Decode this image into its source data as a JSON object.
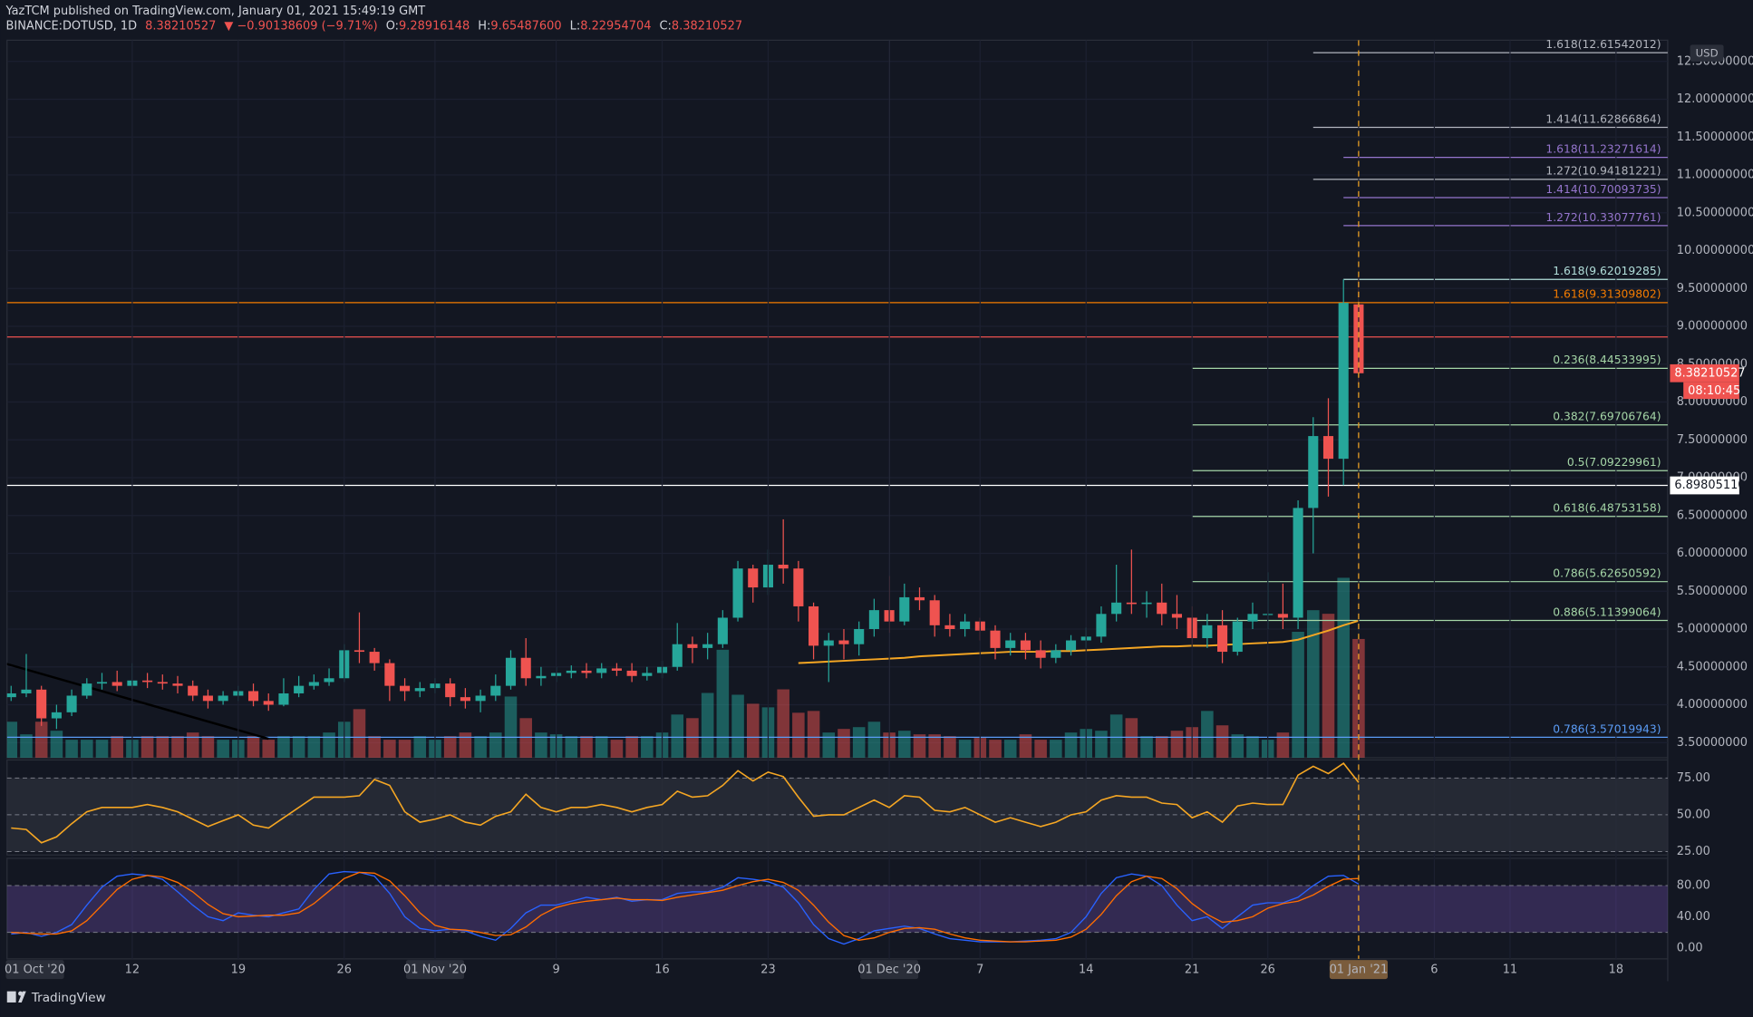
{
  "header": {
    "publisher": "YazTCM published on TradingView.com, January 01, 2021 15:49:19 GMT",
    "symbol": "BINANCE:DOTUSD, 1D",
    "last": "8.38210527",
    "change": "▼ −0.90138609 (−9.71%)",
    "ohlc": [
      {
        "key": "O:",
        "value": "9.28916148"
      },
      {
        "key": "H:",
        "value": "9.65487600"
      },
      {
        "key": "L:",
        "value": "8.22954704"
      },
      {
        "key": "C:",
        "value": "8.38210527"
      }
    ]
  },
  "footer": "TradingView",
  "chart_data": {
    "type": "candlestick",
    "x": [
      "2020-10-04",
      "2020-10-05",
      "2020-10-06",
      "2020-10-07",
      "2020-10-08",
      "2020-10-09",
      "2020-10-10",
      "2020-10-11",
      "2020-10-12",
      "2020-10-13",
      "2020-10-14",
      "2020-10-15",
      "2020-10-16",
      "2020-10-17",
      "2020-10-18",
      "2020-10-19",
      "2020-10-20",
      "2020-10-21",
      "2020-10-22",
      "2020-10-23",
      "2020-10-24",
      "2020-10-25",
      "2020-10-26",
      "2020-10-27",
      "2020-10-28",
      "2020-10-29",
      "2020-10-30",
      "2020-10-31",
      "2020-11-01",
      "2020-11-02",
      "2020-11-03",
      "2020-11-04",
      "2020-11-05",
      "2020-11-06",
      "2020-11-07",
      "2020-11-08",
      "2020-11-09",
      "2020-11-10",
      "2020-11-11",
      "2020-11-12",
      "2020-11-13",
      "2020-11-14",
      "2020-11-15",
      "2020-11-16",
      "2020-11-17",
      "2020-11-18",
      "2020-11-19",
      "2020-11-20",
      "2020-11-21",
      "2020-11-22",
      "2020-11-23",
      "2020-11-24",
      "2020-11-25",
      "2020-11-26",
      "2020-11-27",
      "2020-11-28",
      "2020-11-29",
      "2020-11-30",
      "2020-12-01",
      "2020-12-02",
      "2020-12-03",
      "2020-12-04",
      "2020-12-05",
      "2020-12-06",
      "2020-12-07",
      "2020-12-08",
      "2020-12-09",
      "2020-12-10",
      "2020-12-11",
      "2020-12-12",
      "2020-12-13",
      "2020-12-14",
      "2020-12-15",
      "2020-12-16",
      "2020-12-17",
      "2020-12-18",
      "2020-12-19",
      "2020-12-20",
      "2020-12-21",
      "2020-12-22",
      "2020-12-23",
      "2020-12-24",
      "2020-12-25",
      "2020-12-26",
      "2020-12-27",
      "2020-12-28",
      "2020-12-29",
      "2020-12-30",
      "2020-12-31",
      "2021-01-01"
    ],
    "open": [
      4.1,
      4.15,
      4.2,
      3.82,
      3.9,
      4.12,
      4.28,
      4.3,
      4.25,
      4.32,
      4.3,
      4.28,
      4.25,
      4.12,
      4.05,
      4.12,
      4.18,
      4.05,
      4.0,
      4.15,
      4.25,
      4.3,
      4.35,
      4.72,
      4.7,
      4.55,
      4.25,
      4.18,
      4.22,
      4.28,
      4.1,
      4.05,
      4.12,
      4.25,
      4.62,
      4.35,
      4.38,
      4.42,
      4.45,
      4.42,
      4.48,
      4.45,
      4.38,
      4.42,
      4.5,
      4.8,
      4.75,
      4.8,
      5.15,
      5.8,
      5.55,
      5.85,
      5.8,
      5.3,
      4.78,
      4.85,
      4.8,
      5.0,
      5.25,
      5.1,
      5.42,
      5.38,
      5.05,
      5.0,
      5.1,
      4.98,
      4.75,
      4.85,
      4.72,
      4.62,
      4.72,
      4.85,
      4.9,
      5.2,
      5.35,
      5.33,
      5.35,
      5.2,
      5.15,
      4.88,
      5.05,
      4.7,
      5.1,
      5.2,
      5.2,
      5.15,
      6.6,
      7.55,
      7.25,
      9.29
    ],
    "high": [
      4.25,
      4.67,
      4.25,
      4.0,
      4.2,
      4.35,
      4.42,
      4.45,
      4.55,
      4.42,
      4.4,
      4.38,
      4.32,
      4.2,
      4.18,
      4.25,
      4.28,
      4.15,
      4.35,
      4.38,
      4.4,
      4.48,
      4.8,
      5.22,
      4.75,
      4.6,
      4.35,
      4.3,
      4.35,
      4.35,
      4.22,
      4.2,
      4.4,
      4.72,
      4.88,
      4.5,
      4.5,
      4.52,
      4.55,
      4.55,
      4.55,
      4.55,
      4.5,
      4.58,
      5.08,
      4.9,
      4.95,
      5.25,
      5.9,
      5.85,
      6.05,
      6.45,
      5.9,
      5.35,
      4.95,
      5.0,
      5.1,
      5.4,
      5.7,
      5.6,
      5.55,
      5.45,
      5.2,
      5.2,
      5.15,
      5.05,
      4.95,
      4.95,
      4.85,
      4.8,
      4.92,
      5.02,
      5.3,
      5.85,
      6.05,
      5.5,
      5.6,
      5.45,
      5.3,
      5.2,
      5.25,
      5.15,
      5.35,
      5.75,
      5.6,
      6.7,
      7.8,
      8.05,
      9.62,
      9.65
    ],
    "low": [
      4.05,
      4.1,
      3.72,
      3.68,
      3.85,
      4.08,
      4.2,
      4.18,
      4.2,
      4.22,
      4.2,
      4.15,
      4.05,
      3.95,
      4.0,
      4.05,
      3.98,
      3.92,
      3.98,
      4.1,
      4.2,
      4.25,
      4.3,
      4.55,
      4.45,
      4.05,
      4.05,
      4.1,
      4.15,
      3.98,
      3.95,
      3.9,
      4.05,
      4.2,
      4.25,
      4.25,
      4.3,
      4.35,
      4.35,
      4.35,
      4.38,
      4.3,
      4.32,
      4.35,
      4.45,
      4.55,
      4.6,
      4.75,
      5.1,
      5.35,
      5.45,
      5.6,
      5.1,
      4.6,
      4.3,
      4.6,
      4.65,
      4.9,
      4.95,
      5.05,
      5.25,
      4.9,
      4.9,
      4.9,
      4.85,
      4.6,
      4.65,
      4.6,
      4.48,
      4.55,
      4.65,
      4.75,
      4.82,
      5.1,
      5.2,
      5.15,
      5.05,
      5.0,
      4.8,
      4.75,
      4.55,
      4.65,
      5.0,
      5.0,
      5.0,
      5.0,
      6.0,
      6.75,
      6.9,
      8.23
    ],
    "close": [
      4.15,
      4.2,
      3.82,
      3.9,
      4.12,
      4.28,
      4.3,
      4.25,
      4.32,
      4.3,
      4.28,
      4.25,
      4.12,
      4.05,
      4.12,
      4.18,
      4.05,
      4.0,
      4.15,
      4.25,
      4.3,
      4.35,
      4.72,
      4.7,
      4.55,
      4.25,
      4.18,
      4.22,
      4.28,
      4.1,
      4.05,
      4.12,
      4.25,
      4.62,
      4.35,
      4.38,
      4.42,
      4.45,
      4.42,
      4.48,
      4.45,
      4.38,
      4.42,
      4.5,
      4.8,
      4.75,
      4.8,
      5.15,
      5.8,
      5.55,
      5.85,
      5.8,
      5.3,
      4.78,
      4.85,
      4.8,
      5.0,
      5.25,
      5.1,
      5.42,
      5.38,
      5.05,
      5.0,
      5.1,
      4.98,
      4.75,
      4.85,
      4.72,
      4.62,
      4.72,
      4.85,
      4.9,
      5.2,
      5.35,
      5.33,
      5.35,
      5.2,
      5.15,
      4.88,
      5.05,
      4.7,
      5.1,
      5.2,
      5.2,
      5.15,
      6.6,
      7.55,
      7.25,
      9.31,
      8.38
    ],
    "volume": [
      20,
      13,
      20,
      15,
      10,
      10,
      10,
      12,
      10,
      12,
      12,
      12,
      14,
      12,
      10,
      10,
      12,
      10,
      12,
      12,
      12,
      14,
      20,
      27,
      12,
      10,
      10,
      12,
      10,
      12,
      14,
      12,
      14,
      34,
      22,
      14,
      13,
      12,
      12,
      12,
      10,
      12,
      12,
      14,
      24,
      22,
      36,
      60,
      35,
      30,
      28,
      38,
      25,
      26,
      14,
      16,
      17,
      20,
      14,
      15,
      13,
      13,
      12,
      10,
      11,
      10,
      10,
      13,
      10,
      10,
      14,
      16,
      15,
      24,
      22,
      12,
      12,
      15,
      17,
      26,
      18,
      13,
      12,
      10,
      14,
      70,
      82,
      80,
      100,
      66
    ],
    "up_color": "#26a69a",
    "down_color": "#ef5350",
    "xlim": [
      "2020-10-03T17:30:00Z",
      "2021-01-21T10:00:00Z"
    ],
    "xticks": [
      {
        "value": "2020-10-01",
        "label": "01 Oct '20"
      },
      {
        "value": "2020-10-12",
        "label": "12"
      },
      {
        "value": "2020-10-19",
        "label": "19"
      },
      {
        "value": "2020-10-26",
        "label": "26"
      },
      {
        "value": "2020-11-01",
        "label": "01 Nov '20"
      },
      {
        "value": "2020-11-09",
        "label": "9"
      },
      {
        "value": "2020-11-16",
        "label": "16"
      },
      {
        "value": "2020-11-23",
        "label": "23"
      },
      {
        "value": "2020-12-01",
        "label": "01 Dec '20"
      },
      {
        "value": "2020-12-07",
        "label": "7"
      },
      {
        "value": "2020-12-14",
        "label": "14"
      },
      {
        "value": "2020-12-21",
        "label": "21"
      },
      {
        "value": "2020-12-26",
        "label": "26"
      },
      {
        "value": "2021-01-01",
        "label": "01 Jan '21"
      },
      {
        "value": "2021-01-06",
        "label": "6"
      },
      {
        "value": "2021-01-11",
        "label": "11"
      },
      {
        "value": "2021-01-18",
        "label": "18"
      }
    ],
    "ylim": [
      3.3,
      12.78
    ],
    "yticks": [
      {
        "value": 3.5,
        "label": "3.50000000"
      },
      {
        "value": 4,
        "label": "4.00000000"
      },
      {
        "value": 4.5,
        "label": "4.50000000"
      },
      {
        "value": 5,
        "label": "5.00000000"
      },
      {
        "value": 5.5,
        "label": "5.50000000"
      },
      {
        "value": 6,
        "label": "6.00000000"
      },
      {
        "value": 6.5,
        "label": "6.50000000"
      },
      {
        "value": 7,
        "label": "7.00000000"
      },
      {
        "value": 7.5,
        "label": "7.50000000"
      },
      {
        "value": 8,
        "label": "8.00000000"
      },
      {
        "value": 8.5,
        "label": "8.50000000"
      },
      {
        "value": 9,
        "label": "9.00000000"
      },
      {
        "value": 9.5,
        "label": "9.50000000"
      },
      {
        "value": 10,
        "label": "10.00000000"
      },
      {
        "value": 10.5,
        "label": "10.50000000"
      },
      {
        "value": 11,
        "label": "11.00000000"
      },
      {
        "value": 11.5,
        "label": "11.50000000"
      },
      {
        "value": 12,
        "label": "12.00000000"
      },
      {
        "value": 12.5,
        "label": "12.50000000"
      }
    ],
    "y_unit": "USD",
    "ma": {
      "color": "#f5a623",
      "values": [
        null,
        null,
        null,
        null,
        null,
        null,
        null,
        null,
        null,
        null,
        null,
        null,
        null,
        null,
        null,
        null,
        null,
        null,
        null,
        null,
        null,
        null,
        null,
        null,
        null,
        null,
        null,
        null,
        null,
        null,
        null,
        null,
        null,
        null,
        null,
        null,
        null,
        null,
        null,
        null,
        null,
        null,
        null,
        null,
        null,
        null,
        null,
        null,
        null,
        null,
        null,
        null,
        4.55,
        4.56,
        4.57,
        4.58,
        4.59,
        4.6,
        4.61,
        4.62,
        4.64,
        4.65,
        4.66,
        4.67,
        4.68,
        4.69,
        4.7,
        4.7,
        4.7,
        4.71,
        4.71,
        4.72,
        4.73,
        4.74,
        4.75,
        4.76,
        4.77,
        4.77,
        4.78,
        4.78,
        4.79,
        4.8,
        4.81,
        4.82,
        4.83,
        4.86,
        4.92,
        4.98,
        5.05,
        5.11
      ]
    },
    "trendline": {
      "color": "#000000",
      "x": [
        "2020-10-03",
        "2020-10-21"
      ],
      "values": [
        4.58,
        3.55
      ]
    },
    "levels": [
      {
        "label": "1.618(12.61542012)",
        "value": 12.61542012,
        "color": "#b2b5be",
        "start": "2020-12-29"
      },
      {
        "label": "1.414(11.62866864)",
        "value": 11.62866864,
        "color": "#b2b5be",
        "start": "2020-12-29"
      },
      {
        "label": "1.618(11.23271614)",
        "value": 11.23271614,
        "color": "#9575cd",
        "start": "2020-12-31"
      },
      {
        "label": "1.272(10.94181221)",
        "value": 10.94181221,
        "color": "#b2b5be",
        "start": "2020-12-29"
      },
      {
        "label": "1.414(10.70093735)",
        "value": 10.70093735,
        "color": "#9575cd",
        "start": "2020-12-31"
      },
      {
        "label": "1.272(10.33077761)",
        "value": 10.33077761,
        "color": "#9575cd",
        "start": "2020-12-31"
      },
      {
        "label": "1.618(9.62019285)",
        "value": 9.62019285,
        "color": "#b2dfdb",
        "start": "2020-12-31"
      },
      {
        "label": "1.618(9.31309802)",
        "value": 9.31309802,
        "color": "#f57c00"
      },
      {
        "label": "0.236(8.44533995)",
        "value": 8.44533995,
        "color": "#a5d6a7",
        "start": "2020-12-21"
      },
      {
        "label": "0.382(7.69706764)",
        "value": 7.69706764,
        "color": "#a5d6a7",
        "start": "2020-12-21"
      },
      {
        "label": "0.5(7.09229961)",
        "value": 7.09229961,
        "color": "#a5d6a7",
        "start": "2020-12-21"
      },
      {
        "label": "0.618(6.48753158)",
        "value": 6.48753158,
        "color": "#a5d6a7",
        "start": "2020-12-21"
      },
      {
        "label": "0.786(5.62650592)",
        "value": 5.62650592,
        "color": "#a5d6a7",
        "start": "2020-12-21"
      },
      {
        "label": "0.886(5.11399064)",
        "value": 5.11399064,
        "color": "#a5d6a7",
        "start": "2020-12-21"
      },
      {
        "label": "0.786(3.57019943)",
        "value": 3.57019943,
        "color": "#5b9cf6"
      }
    ],
    "hlines": [
      {
        "value": 8.86,
        "color": "#ef5350"
      },
      {
        "value": 6.8980511,
        "color": "#ffffff",
        "label": "6.89805110"
      }
    ],
    "last_price_label": "8.38210527",
    "countdown": "08:10:45",
    "vlines": [
      "2020-11-01",
      "2020-12-01"
    ],
    "cursor": {
      "x": "2021-01-01",
      "color": "#f5a623"
    },
    "rsi": {
      "color": "#f5a623",
      "ylim": [
        22.7,
        87.3
      ],
      "band": [
        25,
        75
      ],
      "yticks": [
        {
          "value": 25,
          "label": "25.00"
        },
        {
          "value": 50,
          "label": "50.00"
        },
        {
          "value": 75,
          "label": "75.00"
        }
      ],
      "values": [
        41,
        40,
        31,
        35,
        44,
        52,
        55,
        55,
        55,
        57,
        55,
        52,
        47,
        42,
        46,
        50,
        43,
        41,
        48,
        55,
        62,
        62,
        62,
        63,
        74,
        70,
        52,
        45,
        47,
        50,
        45,
        43,
        49,
        52,
        64,
        55,
        52,
        55,
        55,
        57,
        55,
        52,
        55,
        57,
        66,
        62,
        63,
        70,
        80,
        73,
        79,
        76,
        62,
        49,
        50,
        50,
        55,
        60,
        55,
        63,
        62,
        53,
        52,
        55,
        50,
        45,
        48,
        45,
        42,
        45,
        50,
        52,
        60,
        63,
        62,
        62,
        58,
        57,
        48,
        52,
        45,
        56,
        58,
        57,
        57,
        77,
        83,
        78,
        85,
        72
      ]
    },
    "stoch": {
      "ylim": [
        -14,
        115
      ],
      "band": [
        20,
        80
      ],
      "yticks": [
        {
          "value": 0,
          "label": "0.00"
        },
        {
          "value": 40,
          "label": "40.00"
        },
        {
          "value": 80,
          "label": "80.00"
        }
      ],
      "k": {
        "color": "#2962ff",
        "values": [
          18,
          20,
          15,
          20,
          30,
          55,
          78,
          92,
          95,
          93,
          88,
          72,
          55,
          40,
          35,
          45,
          42,
          40,
          45,
          50,
          75,
          95,
          98,
          97,
          92,
          70,
          40,
          25,
          22,
          24,
          22,
          15,
          10,
          25,
          45,
          55,
          55,
          60,
          65,
          62,
          65,
          60,
          62,
          62,
          70,
          72,
          72,
          78,
          90,
          88,
          85,
          78,
          58,
          30,
          12,
          5,
          12,
          22,
          25,
          28,
          25,
          18,
          12,
          10,
          8,
          8,
          8,
          9,
          10,
          12,
          20,
          40,
          70,
          90,
          95,
          92,
          80,
          55,
          35,
          40,
          25,
          40,
          55,
          58,
          58,
          65,
          80,
          92,
          93,
          82
        ]
      },
      "d": {
        "color": "#ff6d00",
        "values": [
          20,
          19,
          18,
          18,
          22,
          35,
          55,
          75,
          88,
          93,
          91,
          84,
          72,
          56,
          44,
          40,
          41,
          42,
          42,
          45,
          57,
          73,
          89,
          97,
          96,
          86,
          67,
          45,
          29,
          24,
          23,
          20,
          16,
          17,
          27,
          42,
          52,
          57,
          60,
          62,
          64,
          62,
          62,
          61,
          65,
          68,
          71,
          74,
          80,
          85,
          88,
          84,
          74,
          55,
          33,
          16,
          10,
          13,
          20,
          25,
          26,
          24,
          18,
          13,
          10,
          9,
          8,
          8,
          9,
          10,
          14,
          24,
          43,
          67,
          85,
          92,
          89,
          76,
          57,
          43,
          33,
          35,
          40,
          51,
          57,
          60,
          68,
          79,
          88,
          89
        ]
      }
    }
  }
}
